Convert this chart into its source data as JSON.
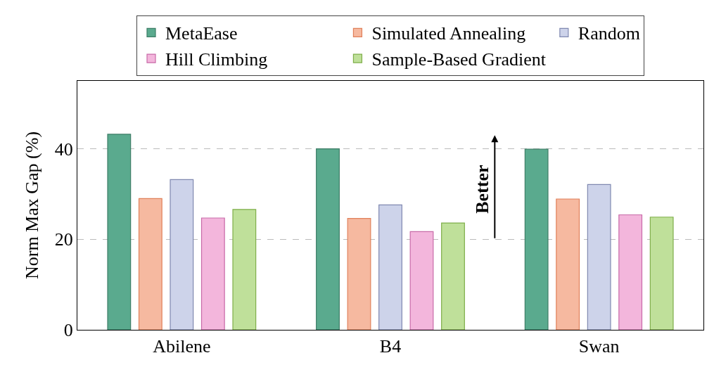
{
  "chart_data": {
    "type": "bar",
    "ylabel": "Norm Max Gap (%)",
    "categories": [
      "Abilene",
      "B4",
      "Swan"
    ],
    "series": [
      {
        "name": "MetaEase",
        "color": "#5aaa8e",
        "values": [
          43.2,
          40.0,
          39.9
        ]
      },
      {
        "name": "Simulated Annealing",
        "color": "#f6b9a0",
        "values": [
          29.0,
          24.6,
          28.9
        ]
      },
      {
        "name": "Random",
        "color": "#cdd3ea",
        "values": [
          33.2,
          27.6,
          32.1
        ]
      },
      {
        "name": "Hill Climbing",
        "color": "#f3b6dc",
        "values": [
          24.7,
          21.7,
          25.4
        ]
      },
      {
        "name": "Sample-Based Gradient",
        "color": "#bfe09a",
        "values": [
          26.6,
          23.6,
          24.9
        ]
      }
    ],
    "ylim": [
      0,
      55
    ],
    "yticks": [
      0,
      20,
      40
    ],
    "grid": "y",
    "legend": "top",
    "annotations": [
      "Better"
    ]
  }
}
